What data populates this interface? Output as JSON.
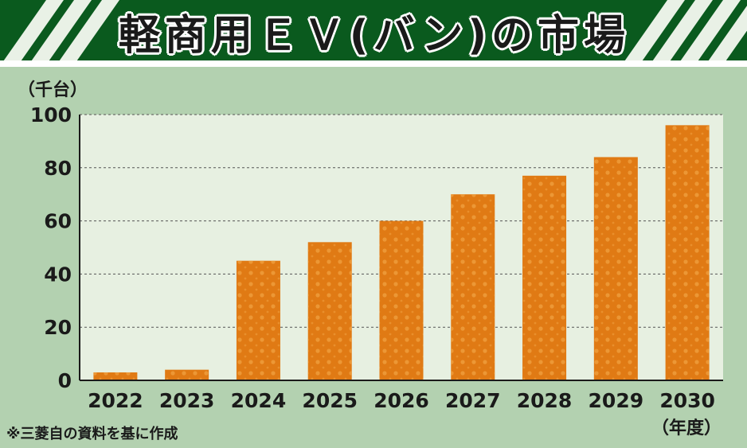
{
  "title": "軽商用ＥＶ(バン)の市場",
  "note": "※三菱自の資料を基に作成",
  "colors": {
    "bar": "#e07a14",
    "plot_bg": "#e7f0e1",
    "page_bg": "#b3d1b0",
    "header": "#0a5a1e"
  },
  "chart_data": {
    "type": "bar",
    "ylabel": "（千台）",
    "xlabel": "（年度）",
    "categories": [
      "2022",
      "2023",
      "2024",
      "2025",
      "2026",
      "2027",
      "2028",
      "2029",
      "2030"
    ],
    "values": [
      3,
      4,
      45,
      52,
      60,
      70,
      77,
      84,
      96
    ],
    "ylim": [
      0,
      100
    ],
    "yticks": [
      "0",
      "20",
      "40",
      "60",
      "80",
      "100"
    ],
    "grid": true
  }
}
